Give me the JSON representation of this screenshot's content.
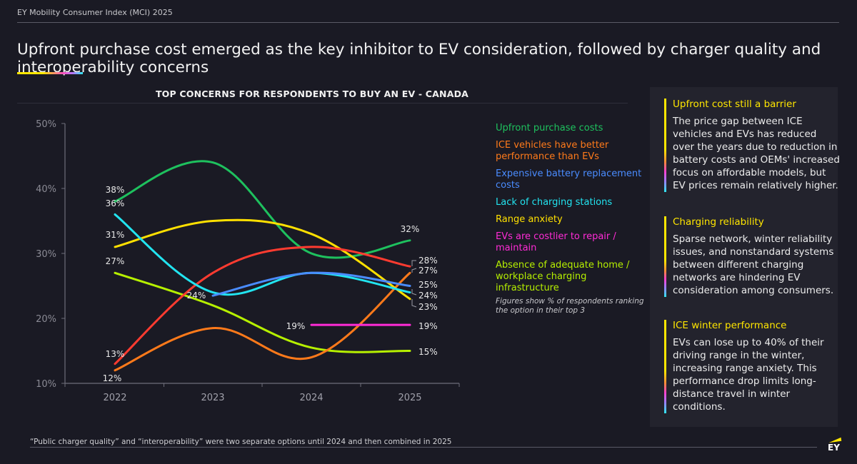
{
  "header": {
    "label": "EY Mobility Consumer Index (MCI) 2025",
    "title": "Upfront purchase cost emerged as the key inhibitor to EV consideration, followed by charger quality and interoperability concerns"
  },
  "chart_data": {
    "type": "line",
    "title": "TOP CONCERNS FOR RESPONDENTS TO BUY AN EV - CANADA",
    "xlabel": "",
    "ylabel": "",
    "x": [
      "2022",
      "2023",
      "2024",
      "2025"
    ],
    "ylim": [
      10,
      50
    ],
    "yticks": [
      "10%",
      "20%",
      "30%",
      "40%",
      "50%"
    ],
    "ytick_values": [
      10,
      20,
      30,
      40,
      50
    ],
    "grid": false,
    "legend_position": "right",
    "series": [
      {
        "name": "Upfront purchase costs",
        "color": "#1ec15e",
        "values": [
          38,
          44,
          30,
          32
        ],
        "labels": {
          "0": "38%",
          "3": "32%"
        }
      },
      {
        "name": "ICE vehicles have better performance than EVs",
        "color": "#ff7a1a",
        "values": [
          12,
          18.5,
          14,
          27
        ],
        "labels": {
          "0": "12%",
          "3": "27%"
        }
      },
      {
        "name": "Expensive battery replacement costs",
        "color": "#4a8cff",
        "values": [
          null,
          23.5,
          27,
          25
        ],
        "labels": {
          "3": "25%"
        }
      },
      {
        "name": "Lack of charging stations",
        "color": "#22e4f0",
        "values": [
          36,
          24,
          27,
          24
        ],
        "labels": {
          "0": "36%",
          "1": "24%",
          "3": "24%"
        }
      },
      {
        "name": "Range anxiety",
        "color": "#ffe000",
        "values": [
          31,
          35,
          33,
          23
        ],
        "labels": {
          "0": "31%",
          "3": "23%"
        }
      },
      {
        "name": "EVs are costlier to repair / maintain",
        "color": "#ff2bd6",
        "values": [
          null,
          null,
          19,
          19
        ],
        "labels": {
          "2": "19%",
          "3": "19%"
        }
      },
      {
        "name": "Absence of adequate home / workplace charging infrastructure",
        "color": "#b6f000",
        "values": [
          27,
          22,
          15.5,
          15
        ],
        "labels": {
          "0": "27%",
          "3": "15%"
        }
      },
      {
        "name": "Public charger quality / interoperability",
        "color": "#ff3b30",
        "values": [
          13,
          27,
          31,
          28
        ],
        "labels": {
          "0": "13%",
          "3": "28%"
        },
        "in_legend": false
      }
    ],
    "note": "Figures show % of respondents ranking the option in their top 3"
  },
  "legend": [
    {
      "label": "Upfront purchase costs",
      "color": "#1ec15e"
    },
    {
      "label": "ICE vehicles have better performance than EVs",
      "color": "#ff7a1a"
    },
    {
      "label": "Expensive battery replacement costs",
      "color": "#4a8cff"
    },
    {
      "label": "Lack of charging stations",
      "color": "#22e4f0"
    },
    {
      "label": "Range anxiety",
      "color": "#ffe000"
    },
    {
      "label": "EVs are costlier to repair / maintain",
      "color": "#ff2bd6"
    },
    {
      "label": "Absence of adequate home / workplace charging infrastructure",
      "color": "#b6f000"
    }
  ],
  "side_panel": [
    {
      "title": "Upfront cost still a barrier",
      "body": "The price gap between ICE vehicles and EVs has reduced over the years due to reduction in battery costs and OEMs' increased focus on affordable models, but EV prices remain relatively higher."
    },
    {
      "title": "Charging reliability",
      "body": "Sparse network, winter reliability issues, and nonstandard systems between different charging networks are hindering EV consideration among consumers."
    },
    {
      "title": "ICE winter performance",
      "body": "EVs can lose up to 40% of their driving range in the winter, increasing range anxiety. This performance drop limits long-distance travel in winter conditions."
    }
  ],
  "footer": {
    "note": "“Public charger quality” and “interoperability” were two separate options until 2024 and then combined in 2025",
    "logo": "EY"
  }
}
